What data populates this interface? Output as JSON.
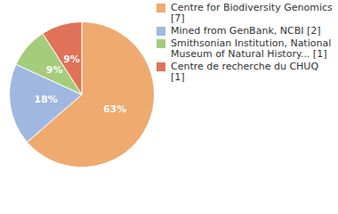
{
  "chart_data": {
    "type": "pie",
    "categories": [
      "Centre for Biodiversity Genomics [7]",
      "Mined from GenBank, NCBI [2]",
      "Smithsonian Institution, National Museum of Natural History... [1]",
      "Centre de recherche du CHUQ [1]"
    ],
    "values": [
      63,
      18,
      9,
      9
    ],
    "value_labels": [
      "63%",
      "18%",
      "9%",
      "9%"
    ],
    "colors": [
      "#efaa6f",
      "#a0b8e0",
      "#a4cc7a",
      "#e0725a"
    ],
    "data_labels": true,
    "legend": "right"
  }
}
